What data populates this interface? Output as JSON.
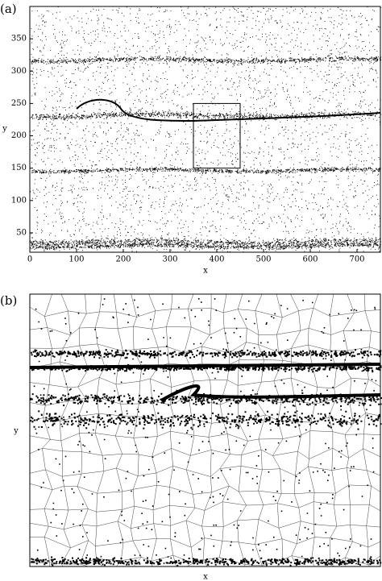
{
  "chart_data": [
    {
      "type": "scatter",
      "panel_label": "(a)",
      "xlabel": "x",
      "ylabel": "y",
      "xlim": [
        0,
        750
      ],
      "ylim": [
        20,
        400
      ],
      "xticks": [
        0,
        100,
        200,
        300,
        400,
        500,
        600,
        700
      ],
      "yticks": [
        50,
        100,
        150,
        200,
        250,
        300,
        350
      ],
      "box": {
        "x": [
          350,
          450
        ],
        "y": [
          150,
          250
        ]
      }
    },
    {
      "type": "voronoi",
      "panel_label": "(b)",
      "xlabel": "x",
      "ylabel": "y"
    }
  ]
}
